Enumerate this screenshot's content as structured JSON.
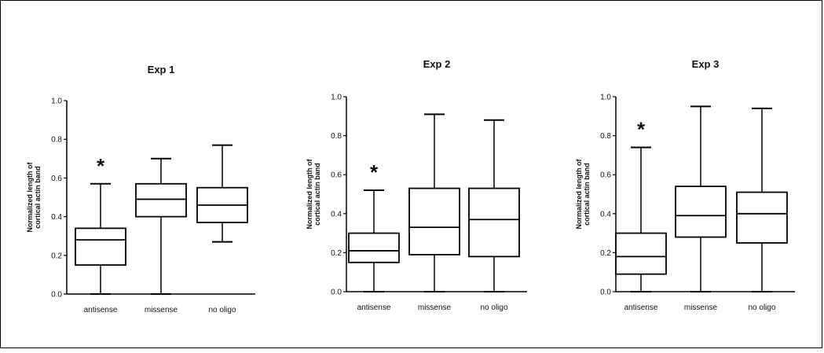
{
  "chart_data": [
    {
      "type": "boxplot",
      "title": "Exp 1",
      "ylabel": [
        "Normalized length of",
        "cortical actin band"
      ],
      "ylim": [
        0,
        1.0
      ],
      "yticks": [
        "0.0",
        "0.2",
        "0.4",
        "0.6",
        "0.8",
        "1.0"
      ],
      "categories": [
        "antisense",
        "missense",
        "no oligo"
      ],
      "boxes": [
        {
          "min": 0.0,
          "q1": 0.15,
          "median": 0.28,
          "q3": 0.34,
          "max": 0.57
        },
        {
          "min": 0.0,
          "q1": 0.4,
          "median": 0.49,
          "q3": 0.57,
          "max": 0.7
        },
        {
          "min": 0.27,
          "q1": 0.37,
          "median": 0.46,
          "q3": 0.55,
          "max": 0.77
        }
      ],
      "annotations": [
        {
          "category": "antisense",
          "text": "*"
        }
      ]
    },
    {
      "type": "boxplot",
      "title": "Exp 2",
      "ylabel": [
        "Normalized length of",
        "cortical actin band"
      ],
      "ylim": [
        0,
        1.0
      ],
      "yticks": [
        "0.0",
        "0.2",
        "0.4",
        "0.6",
        "0.8",
        "1.0"
      ],
      "categories": [
        "antisense",
        "missense",
        "no oligo"
      ],
      "boxes": [
        {
          "min": 0.0,
          "q1": 0.15,
          "median": 0.21,
          "q3": 0.3,
          "max": 0.52
        },
        {
          "min": 0.0,
          "q1": 0.19,
          "median": 0.33,
          "q3": 0.53,
          "max": 0.91
        },
        {
          "min": 0.0,
          "q1": 0.18,
          "median": 0.37,
          "q3": 0.53,
          "max": 0.88
        }
      ],
      "annotations": [
        {
          "category": "antisense",
          "text": "*"
        }
      ]
    },
    {
      "type": "boxplot",
      "title": "Exp 3",
      "ylabel": [
        "Normalized length of",
        "cortical actin band"
      ],
      "ylim": [
        0,
        1.0
      ],
      "yticks": [
        "0.0",
        "0.2",
        "0.4",
        "0.6",
        "0.8",
        "1.0"
      ],
      "categories": [
        "antisense",
        "missense",
        "no oligo"
      ],
      "boxes": [
        {
          "min": 0.0,
          "q1": 0.09,
          "median": 0.18,
          "q3": 0.3,
          "max": 0.74
        },
        {
          "min": 0.0,
          "q1": 0.28,
          "median": 0.39,
          "q3": 0.54,
          "max": 0.95
        },
        {
          "min": 0.0,
          "q1": 0.25,
          "median": 0.4,
          "q3": 0.51,
          "max": 0.94
        }
      ],
      "annotations": [
        {
          "category": "antisense",
          "text": "*"
        }
      ]
    }
  ]
}
